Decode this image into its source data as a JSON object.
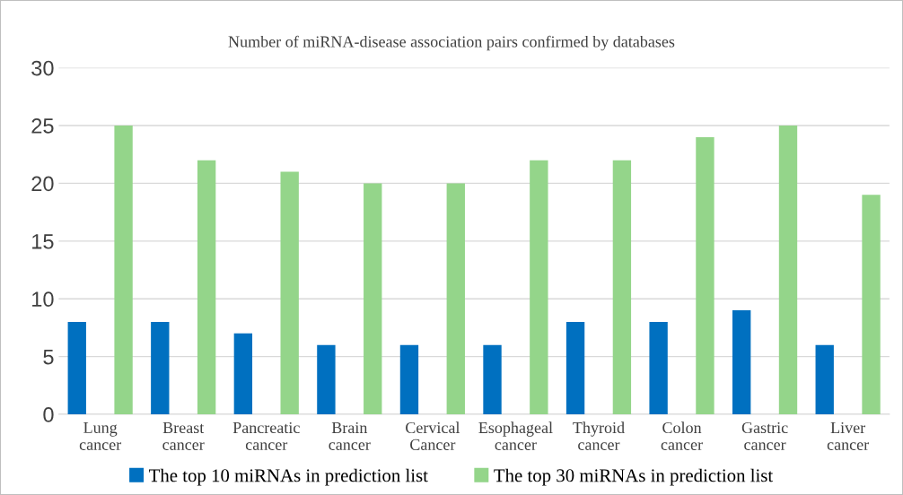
{
  "chart_data": {
    "type": "bar",
    "title": "Number of miRNA-disease association pairs confirmed by databases",
    "categories": [
      "Lung cancer",
      "Breast cancer",
      "Pancreatic cancer",
      "Brain cancer",
      "Cervical Cancer",
      "Esophageal cancer",
      "Thyroid cancer",
      "Colon cancer",
      "Gastric cancer",
      "Liver cancer"
    ],
    "series": [
      {
        "name": "The top 10 miRNAs in prediction list",
        "color": "#0070c0",
        "values": [
          8,
          8,
          7,
          6,
          6,
          6,
          8,
          8,
          9,
          6
        ]
      },
      {
        "name": "The top 30 miRNAs in prediction list",
        "color": "#94d58a",
        "values": [
          25,
          22,
          21,
          20,
          20,
          22,
          22,
          24,
          25,
          19
        ]
      }
    ],
    "ylim": [
      0,
      30
    ],
    "yticks": [
      0,
      5,
      10,
      15,
      20,
      25,
      30
    ],
    "grid": "y",
    "legend": "bottom"
  }
}
